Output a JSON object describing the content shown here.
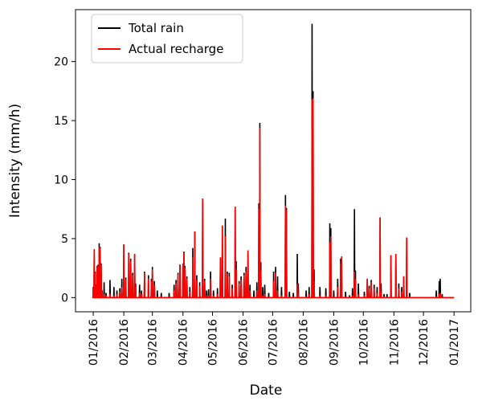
{
  "chart_data": {
    "type": "line",
    "title": "",
    "xlabel": "Date",
    "ylabel": "Intensity (mm/h)",
    "xlim": [
      "2015-12-14",
      "2017-01-18"
    ],
    "ylim": [
      -1.2,
      24.4
    ],
    "y_ticks": [
      0,
      5,
      10,
      15,
      20
    ],
    "x_ticks": [
      "2016-01-01",
      "2016-02-01",
      "2016-03-01",
      "2016-04-01",
      "2016-05-01",
      "2016-06-01",
      "2016-07-01",
      "2016-08-01",
      "2016-09-01",
      "2016-10-01",
      "2016-11-01",
      "2016-12-01",
      "2017-01-01"
    ],
    "x_tick_labels": [
      "01/2016",
      "02/2016",
      "03/2016",
      "04/2016",
      "05/2016",
      "06/2016",
      "07/2016",
      "08/2016",
      "09/2016",
      "10/2016",
      "11/2016",
      "12/2016",
      "01/2017"
    ],
    "x_range": [
      "2016-01-01",
      "2017-01-01"
    ],
    "grid": false,
    "legend_position": "top-left",
    "series": [
      {
        "name": "Total rain",
        "color": "#000000",
        "points": [
          [
            "2016-01-01",
            0.9
          ],
          [
            "2016-01-02",
            4.1
          ],
          [
            "2016-01-03",
            2.2
          ],
          [
            "2016-01-04",
            1.1
          ],
          [
            "2016-01-05",
            2.7
          ],
          [
            "2016-01-06",
            2.8
          ],
          [
            "2016-01-07",
            4.6
          ],
          [
            "2016-01-08",
            4.3
          ],
          [
            "2016-01-09",
            2.9
          ],
          [
            "2016-01-10",
            0.6
          ],
          [
            "2016-01-12",
            1.3
          ],
          [
            "2016-01-14",
            0.4
          ],
          [
            "2016-01-18",
            1.5
          ],
          [
            "2016-01-22",
            0.9
          ],
          [
            "2016-01-25",
            0.6
          ],
          [
            "2016-01-28",
            0.8
          ],
          [
            "2016-01-30",
            1.6
          ],
          [
            "2016-02-01",
            4.5
          ],
          [
            "2016-02-03",
            1.7
          ],
          [
            "2016-02-06",
            3.8
          ],
          [
            "2016-02-08",
            3.3
          ],
          [
            "2016-02-10",
            2.1
          ],
          [
            "2016-02-12",
            3.7
          ],
          [
            "2016-02-13",
            1.2
          ],
          [
            "2016-02-17",
            1.1
          ],
          [
            "2016-02-19",
            0.6
          ],
          [
            "2016-02-22",
            2.2
          ],
          [
            "2016-02-26",
            1.9
          ],
          [
            "2016-02-29",
            1.6
          ],
          [
            "2016-03-01",
            2.6
          ],
          [
            "2016-03-03",
            1.4
          ],
          [
            "2016-03-06",
            0.6
          ],
          [
            "2016-03-10",
            0.4
          ],
          [
            "2016-03-18",
            0.4
          ],
          [
            "2016-03-23",
            1.1
          ],
          [
            "2016-03-25",
            1.5
          ],
          [
            "2016-03-27",
            2.1
          ],
          [
            "2016-03-29",
            2.8
          ],
          [
            "2016-04-01",
            2.9
          ],
          [
            "2016-04-02",
            3.9
          ],
          [
            "2016-04-03",
            2.7
          ],
          [
            "2016-04-05",
            1.8
          ],
          [
            "2016-04-08",
            0.9
          ],
          [
            "2016-04-11",
            4.2
          ],
          [
            "2016-04-13",
            5.6
          ],
          [
            "2016-04-15",
            1.9
          ],
          [
            "2016-04-18",
            1.3
          ],
          [
            "2016-04-21",
            8.4
          ],
          [
            "2016-04-23",
            1.6
          ],
          [
            "2016-04-25",
            0.6
          ],
          [
            "2016-04-27",
            0.7
          ],
          [
            "2016-04-29",
            2.2
          ],
          [
            "2016-05-02",
            0.6
          ],
          [
            "2016-05-06",
            0.8
          ],
          [
            "2016-05-09",
            3.4
          ],
          [
            "2016-05-11",
            6.1
          ],
          [
            "2016-05-14",
            6.7
          ],
          [
            "2016-05-16",
            2.2
          ],
          [
            "2016-05-18",
            2.1
          ],
          [
            "2016-05-21",
            1.1
          ],
          [
            "2016-05-24",
            7.7
          ],
          [
            "2016-05-25",
            3.1
          ],
          [
            "2016-05-28",
            1.4
          ],
          [
            "2016-05-30",
            1.8
          ],
          [
            "2016-06-02",
            2.1
          ],
          [
            "2016-06-04",
            2.6
          ],
          [
            "2016-06-06",
            4.0
          ],
          [
            "2016-06-08",
            1.1
          ],
          [
            "2016-06-12",
            0.6
          ],
          [
            "2016-06-15",
            1.3
          ],
          [
            "2016-06-17",
            8.0
          ],
          [
            "2016-06-18",
            14.8
          ],
          [
            "2016-06-19",
            3.0
          ],
          [
            "2016-06-21",
            0.9
          ],
          [
            "2016-06-23",
            1.1
          ],
          [
            "2016-06-27",
            0.4
          ],
          [
            "2016-07-02",
            2.2
          ],
          [
            "2016-07-04",
            2.6
          ],
          [
            "2016-07-06",
            1.8
          ],
          [
            "2016-07-10",
            0.9
          ],
          [
            "2016-07-14",
            8.7
          ],
          [
            "2016-07-15",
            7.6
          ],
          [
            "2016-07-18",
            0.5
          ],
          [
            "2016-07-22",
            0.4
          ],
          [
            "2016-07-26",
            3.7
          ],
          [
            "2016-07-27",
            1.2
          ],
          [
            "2016-08-04",
            0.6
          ],
          [
            "2016-08-07",
            0.9
          ],
          [
            "2016-08-10",
            23.2
          ],
          [
            "2016-08-11",
            17.5
          ],
          [
            "2016-08-12",
            2.4
          ],
          [
            "2016-08-18",
            0.9
          ],
          [
            "2016-08-24",
            0.8
          ],
          [
            "2016-08-28",
            6.3
          ],
          [
            "2016-08-29",
            5.9
          ],
          [
            "2016-09-01",
            0.6
          ],
          [
            "2016-09-05",
            1.6
          ],
          [
            "2016-09-08",
            3.3
          ],
          [
            "2016-09-09",
            3.5
          ],
          [
            "2016-09-13",
            0.5
          ],
          [
            "2016-09-17",
            0.2
          ],
          [
            "2016-09-20",
            0.8
          ],
          [
            "2016-09-22",
            7.5
          ],
          [
            "2016-09-23",
            2.3
          ],
          [
            "2016-09-26",
            1.2
          ],
          [
            "2016-10-02",
            0.5
          ],
          [
            "2016-10-05",
            1.6
          ],
          [
            "2016-10-07",
            1.0
          ],
          [
            "2016-10-09",
            1.5
          ],
          [
            "2016-10-12",
            1.1
          ],
          [
            "2016-10-15",
            0.9
          ],
          [
            "2016-10-18",
            6.8
          ],
          [
            "2016-10-19",
            1.2
          ],
          [
            "2016-10-22",
            0.3
          ],
          [
            "2016-10-25",
            0.3
          ],
          [
            "2016-10-29",
            3.6
          ],
          [
            "2016-11-03",
            3.7
          ],
          [
            "2016-11-06",
            1.2
          ],
          [
            "2016-11-09",
            0.9
          ],
          [
            "2016-11-11",
            1.8
          ],
          [
            "2016-11-14",
            5.1
          ],
          [
            "2016-11-17",
            0.4
          ],
          [
            "2016-12-14",
            0.6
          ],
          [
            "2016-12-17",
            1.4
          ],
          [
            "2016-12-18",
            1.6
          ],
          [
            "2016-12-20",
            0.3
          ]
        ]
      },
      {
        "name": "Actual recharge",
        "color": "#ff0000",
        "points": [
          [
            "2016-01-01",
            0.8
          ],
          [
            "2016-01-02",
            4.1
          ],
          [
            "2016-01-03",
            2.1
          ],
          [
            "2016-01-04",
            1.0
          ],
          [
            "2016-01-05",
            2.6
          ],
          [
            "2016-01-06",
            2.7
          ],
          [
            "2016-01-07",
            4.3
          ],
          [
            "2016-01-08",
            4.2
          ],
          [
            "2016-01-09",
            2.8
          ],
          [
            "2016-01-10",
            0.5
          ],
          [
            "2016-01-12",
            0.3
          ],
          [
            "2016-01-14",
            0.2
          ],
          [
            "2016-01-18",
            0.3
          ],
          [
            "2016-01-22",
            0.2
          ],
          [
            "2016-01-25",
            0.3
          ],
          [
            "2016-01-28",
            0.5
          ],
          [
            "2016-01-30",
            0.9
          ],
          [
            "2016-02-01",
            4.5
          ],
          [
            "2016-02-03",
            1.5
          ],
          [
            "2016-02-06",
            3.7
          ],
          [
            "2016-02-08",
            3.1
          ],
          [
            "2016-02-10",
            1.9
          ],
          [
            "2016-02-12",
            3.7
          ],
          [
            "2016-02-13",
            0.9
          ],
          [
            "2016-02-17",
            0.4
          ],
          [
            "2016-02-19",
            0.3
          ],
          [
            "2016-02-22",
            2.1
          ],
          [
            "2016-02-26",
            1.6
          ],
          [
            "2016-02-29",
            1.4
          ],
          [
            "2016-03-01",
            2.4
          ],
          [
            "2016-03-03",
            1.1
          ],
          [
            "2016-03-06",
            0.1
          ],
          [
            "2016-03-10",
            0.1
          ],
          [
            "2016-03-18",
            0.1
          ],
          [
            "2016-03-23",
            0.6
          ],
          [
            "2016-03-25",
            1.2
          ],
          [
            "2016-03-27",
            2.0
          ],
          [
            "2016-03-29",
            2.7
          ],
          [
            "2016-04-01",
            2.9
          ],
          [
            "2016-04-02",
            3.8
          ],
          [
            "2016-04-03",
            2.5
          ],
          [
            "2016-04-05",
            1.6
          ],
          [
            "2016-04-08",
            0.5
          ],
          [
            "2016-04-11",
            3.4
          ],
          [
            "2016-04-13",
            5.6
          ],
          [
            "2016-04-15",
            1.5
          ],
          [
            "2016-04-18",
            1.0
          ],
          [
            "2016-04-21",
            8.4
          ],
          [
            "2016-04-23",
            1.4
          ],
          [
            "2016-04-25",
            0.2
          ],
          [
            "2016-04-27",
            0.2
          ],
          [
            "2016-04-29",
            1.6
          ],
          [
            "2016-05-02",
            0.2
          ],
          [
            "2016-05-06",
            0.3
          ],
          [
            "2016-05-09",
            3.4
          ],
          [
            "2016-05-11",
            6.1
          ],
          [
            "2016-05-14",
            5.2
          ],
          [
            "2016-05-16",
            2.0
          ],
          [
            "2016-05-18",
            1.8
          ],
          [
            "2016-05-21",
            0.8
          ],
          [
            "2016-05-24",
            7.7
          ],
          [
            "2016-05-25",
            2.4
          ],
          [
            "2016-05-28",
            1.2
          ],
          [
            "2016-05-30",
            1.5
          ],
          [
            "2016-06-02",
            1.9
          ],
          [
            "2016-06-04",
            2.2
          ],
          [
            "2016-06-06",
            4.0
          ],
          [
            "2016-06-08",
            0.6
          ],
          [
            "2016-06-12",
            0.1
          ],
          [
            "2016-06-15",
            0.6
          ],
          [
            "2016-06-17",
            7.5
          ],
          [
            "2016-06-18",
            14.4
          ],
          [
            "2016-06-19",
            2.3
          ],
          [
            "2016-06-21",
            0.2
          ],
          [
            "2016-06-23",
            0.3
          ],
          [
            "2016-06-27",
            0.1
          ],
          [
            "2016-07-02",
            1.4
          ],
          [
            "2016-07-04",
            2.1
          ],
          [
            "2016-07-06",
            0.6
          ],
          [
            "2016-07-10",
            0.2
          ],
          [
            "2016-07-14",
            7.8
          ],
          [
            "2016-07-15",
            7.4
          ],
          [
            "2016-07-18",
            0.1
          ],
          [
            "2016-07-22",
            0.1
          ],
          [
            "2016-07-26",
            1.2
          ],
          [
            "2016-07-27",
            0.4
          ],
          [
            "2016-08-04",
            0.1
          ],
          [
            "2016-08-07",
            0.3
          ],
          [
            "2016-08-10",
            16.8
          ],
          [
            "2016-08-11",
            16.9
          ],
          [
            "2016-08-12",
            1.4
          ],
          [
            "2016-08-18",
            0.2
          ],
          [
            "2016-08-24",
            0.2
          ],
          [
            "2016-08-28",
            4.7
          ],
          [
            "2016-08-29",
            5.2
          ],
          [
            "2016-09-01",
            0.1
          ],
          [
            "2016-09-05",
            0.9
          ],
          [
            "2016-09-08",
            2.9
          ],
          [
            "2016-09-09",
            3.5
          ],
          [
            "2016-09-13",
            0.1
          ],
          [
            "2016-09-17",
            0.1
          ],
          [
            "2016-09-20",
            0.2
          ],
          [
            "2016-09-22",
            2.2
          ],
          [
            "2016-09-23",
            1.6
          ],
          [
            "2016-09-26",
            0.3
          ],
          [
            "2016-10-02",
            0.2
          ],
          [
            "2016-10-05",
            1.6
          ],
          [
            "2016-10-07",
            0.8
          ],
          [
            "2016-10-09",
            1.3
          ],
          [
            "2016-10-12",
            0.8
          ],
          [
            "2016-10-15",
            0.4
          ],
          [
            "2016-10-18",
            6.8
          ],
          [
            "2016-10-19",
            0.5
          ],
          [
            "2016-10-22",
            0.1
          ],
          [
            "2016-10-25",
            0.1
          ],
          [
            "2016-10-29",
            3.6
          ],
          [
            "2016-11-03",
            3.7
          ],
          [
            "2016-11-06",
            0.8
          ],
          [
            "2016-11-09",
            0.5
          ],
          [
            "2016-11-11",
            1.8
          ],
          [
            "2016-11-14",
            5.1
          ],
          [
            "2016-11-17",
            0.1
          ],
          [
            "2016-12-14",
            0.1
          ],
          [
            "2016-12-17",
            0.3
          ],
          [
            "2016-12-18",
            0.4
          ],
          [
            "2016-12-20",
            0.1
          ]
        ]
      }
    ]
  }
}
